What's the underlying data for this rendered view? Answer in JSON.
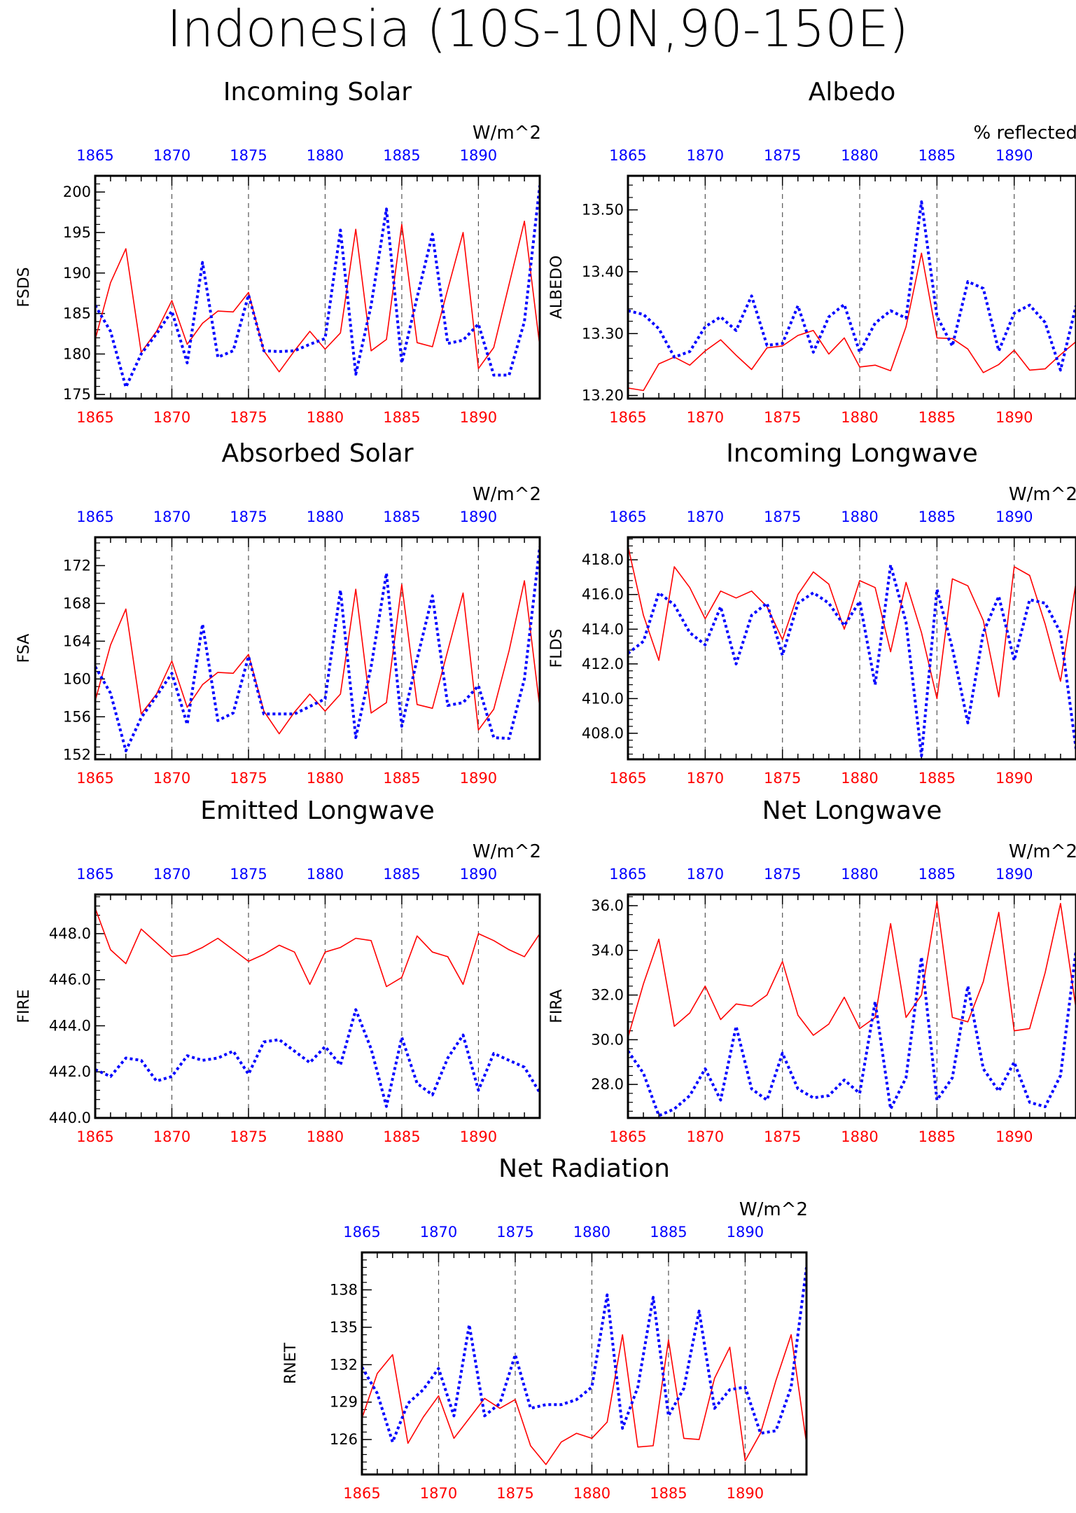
{
  "title": "Indonesia (10S-10N,90-150E)",
  "colors": {
    "series1": "#ff0000",
    "series2": "#0000ff",
    "top_axis": "#0000ff",
    "bottom_axis": "#ff0000"
  },
  "chart_data": [
    {
      "type": "line",
      "title": "Incoming Solar",
      "unit": "W/m^2",
      "ylabel": "FSDS",
      "xlim": [
        1865,
        1894
      ],
      "ylim": [
        174.5,
        202
      ],
      "yticks": [
        175,
        180,
        185,
        190,
        195,
        200
      ],
      "ytick_labels": [
        "175",
        "180",
        "185",
        "190",
        "195",
        "200"
      ],
      "xticks": [
        1865,
        1870,
        1875,
        1880,
        1885,
        1890
      ],
      "xtick_labels": [
        "1865",
        "1870",
        "1875",
        "1880",
        "1885",
        "1890"
      ],
      "x": [
        1865,
        1866,
        1867,
        1868,
        1869,
        1870,
        1871,
        1872,
        1873,
        1874,
        1875,
        1876,
        1877,
        1878,
        1879,
        1880,
        1881,
        1882,
        1883,
        1884,
        1885,
        1886,
        1887,
        1888,
        1889,
        1890,
        1891,
        1892,
        1893,
        1894
      ],
      "series": [
        {
          "values": [
            181.8,
            188.8,
            193.0,
            180.2,
            182.8,
            186.6,
            181.2,
            183.8,
            185.3,
            185.2,
            187.6,
            180.4,
            177.8,
            180.4,
            182.8,
            180.6,
            182.6,
            195.4,
            180.4,
            181.8,
            196.0,
            181.4,
            180.9,
            188.0,
            195.0,
            178.2,
            180.8,
            188.6,
            196.4,
            181.0
          ]
        },
        {
          "values": [
            186.0,
            182.8,
            175.9,
            180.0,
            182.5,
            185.3,
            178.9,
            191.3,
            179.6,
            180.4,
            187.3,
            180.4,
            180.3,
            180.4,
            181.2,
            181.9,
            195.3,
            177.5,
            186.0,
            197.9,
            178.9,
            187.0,
            194.8,
            181.3,
            181.7,
            183.7,
            177.4,
            177.4,
            184.0,
            200.8
          ]
        }
      ]
    },
    {
      "type": "line",
      "title": "Albedo",
      "unit": "% reflected",
      "ylabel": "ALBEDO",
      "xlim": [
        1865,
        1894
      ],
      "ylim": [
        13.195,
        13.555
      ],
      "yticks": [
        13.2,
        13.3,
        13.4,
        13.5
      ],
      "ytick_labels": [
        "13.20",
        "13.30",
        "13.40",
        "13.50"
      ],
      "xticks": [
        1865,
        1870,
        1875,
        1880,
        1885,
        1890
      ],
      "xtick_labels": [
        "1865",
        "1870",
        "1875",
        "1880",
        "1885",
        "1890"
      ],
      "x": [
        1865,
        1866,
        1867,
        1868,
        1869,
        1870,
        1871,
        1872,
        1873,
        1874,
        1875,
        1876,
        1877,
        1878,
        1879,
        1880,
        1881,
        1882,
        1883,
        1884,
        1885,
        1886,
        1887,
        1888,
        1889,
        1890,
        1891,
        1892,
        1893,
        1894
      ],
      "series": [
        {
          "values": [
            13.212,
            13.208,
            13.251,
            13.262,
            13.249,
            13.272,
            13.29,
            13.265,
            13.242,
            13.277,
            13.28,
            13.297,
            13.305,
            13.267,
            13.293,
            13.246,
            13.249,
            13.24,
            13.311,
            13.43,
            13.293,
            13.292,
            13.275,
            13.237,
            13.25,
            13.273,
            13.241,
            13.243,
            13.266,
            13.287
          ]
        },
        {
          "values": [
            13.337,
            13.331,
            13.308,
            13.262,
            13.271,
            13.311,
            13.327,
            13.305,
            13.361,
            13.281,
            13.284,
            13.345,
            13.27,
            13.327,
            13.347,
            13.27,
            13.317,
            13.337,
            13.325,
            13.513,
            13.328,
            13.28,
            13.384,
            13.373,
            13.272,
            13.333,
            13.346,
            13.318,
            13.241,
            13.345
          ]
        }
      ]
    },
    {
      "type": "line",
      "title": "Absorbed Solar",
      "unit": "W/m^2",
      "ylabel": "FSA",
      "xlim": [
        1865,
        1894
      ],
      "ylim": [
        151.5,
        175
      ],
      "yticks": [
        152,
        156,
        160,
        164,
        168,
        172
      ],
      "ytick_labels": [
        "152",
        "156",
        "160",
        "164",
        "168",
        "172"
      ],
      "xticks": [
        1865,
        1870,
        1875,
        1880,
        1885,
        1890
      ],
      "xtick_labels": [
        "1865",
        "1870",
        "1875",
        "1880",
        "1885",
        "1890"
      ],
      "x": [
        1865,
        1866,
        1867,
        1868,
        1869,
        1870,
        1871,
        1872,
        1873,
        1874,
        1875,
        1876,
        1877,
        1878,
        1879,
        1880,
        1881,
        1882,
        1883,
        1884,
        1885,
        1886,
        1887,
        1888,
        1889,
        1890,
        1891,
        1892,
        1893,
        1894
      ],
      "series": [
        {
          "values": [
            157.7,
            163.6,
            167.4,
            156.3,
            158.4,
            161.9,
            157.0,
            159.4,
            160.7,
            160.6,
            162.6,
            156.6,
            154.2,
            156.5,
            158.4,
            156.6,
            158.4,
            169.5,
            156.4,
            157.5,
            170.0,
            157.3,
            156.9,
            163.0,
            169.1,
            154.6,
            156.8,
            163.0,
            170.4,
            157.0
          ]
        },
        {
          "values": [
            161.3,
            158.5,
            152.4,
            155.9,
            158.2,
            160.6,
            155.2,
            165.8,
            155.6,
            156.4,
            162.4,
            156.3,
            156.3,
            156.3,
            157.1,
            157.9,
            169.4,
            153.8,
            161.3,
            171.2,
            155.0,
            162.1,
            168.8,
            157.2,
            157.5,
            159.3,
            153.8,
            153.7,
            160.0,
            174.0
          ]
        }
      ]
    },
    {
      "type": "line",
      "title": "Incoming Longwave",
      "unit": "W/m^2",
      "ylabel": "FLDS",
      "xlim": [
        1865,
        1894
      ],
      "ylim": [
        406.5,
        419.3
      ],
      "yticks": [
        408,
        410,
        412,
        414,
        416,
        418
      ],
      "ytick_labels": [
        "408.0",
        "410.0",
        "412.0",
        "414.0",
        "416.0",
        "418.0"
      ],
      "xticks": [
        1865,
        1870,
        1875,
        1880,
        1885,
        1890
      ],
      "xtick_labels": [
        "1865",
        "1870",
        "1875",
        "1880",
        "1885",
        "1890"
      ],
      "x": [
        1865,
        1866,
        1867,
        1868,
        1869,
        1870,
        1871,
        1872,
        1873,
        1874,
        1875,
        1876,
        1877,
        1878,
        1879,
        1880,
        1881,
        1882,
        1883,
        1884,
        1885,
        1886,
        1887,
        1888,
        1889,
        1890,
        1891,
        1892,
        1893,
        1894
      ],
      "series": [
        {
          "values": [
            418.8,
            414.8,
            412.2,
            417.6,
            416.4,
            414.6,
            416.2,
            415.8,
            416.2,
            415.3,
            413.4,
            416.0,
            417.3,
            416.6,
            414.0,
            416.8,
            416.4,
            412.7,
            416.7,
            413.8,
            410.0,
            416.9,
            416.5,
            414.5,
            410.1,
            417.6,
            417.1,
            414.3,
            411.0,
            416.7
          ]
        },
        {
          "values": [
            412.6,
            413.3,
            416.1,
            415.4,
            413.8,
            413.1,
            415.3,
            412.0,
            414.8,
            415.5,
            412.5,
            415.5,
            416.1,
            415.5,
            414.2,
            415.6,
            410.8,
            417.7,
            414.4,
            406.7,
            416.3,
            412.9,
            408.6,
            413.8,
            415.9,
            412.2,
            415.7,
            415.5,
            413.8,
            407.1
          ]
        }
      ]
    },
    {
      "type": "line",
      "title": "Emitted Longwave",
      "unit": "W/m^2",
      "ylabel": "FIRE",
      "xlim": [
        1865,
        1894
      ],
      "ylim": [
        440,
        449.7
      ],
      "yticks": [
        440,
        442,
        444,
        446,
        448
      ],
      "ytick_labels": [
        "440.0",
        "442.0",
        "444.0",
        "446.0",
        "448.0"
      ],
      "xticks": [
        1865,
        1870,
        1875,
        1880,
        1885,
        1890
      ],
      "xtick_labels": [
        "1865",
        "1870",
        "1875",
        "1880",
        "1885",
        "1890"
      ],
      "x": [
        1865,
        1866,
        1867,
        1868,
        1869,
        1870,
        1871,
        1872,
        1873,
        1874,
        1875,
        1876,
        1877,
        1878,
        1879,
        1880,
        1881,
        1882,
        1883,
        1884,
        1885,
        1886,
        1887,
        1888,
        1889,
        1890,
        1891,
        1892,
        1893,
        1894
      ],
      "series": [
        {
          "values": [
            449.1,
            447.3,
            446.7,
            448.2,
            447.6,
            447.0,
            447.1,
            447.4,
            447.8,
            447.3,
            446.8,
            447.1,
            447.5,
            447.2,
            445.8,
            447.2,
            447.4,
            447.8,
            447.7,
            445.7,
            446.1,
            447.9,
            447.2,
            447.0,
            445.8,
            448.0,
            447.7,
            447.3,
            447.0,
            448.0
          ]
        },
        {
          "values": [
            442.1,
            441.8,
            442.6,
            442.5,
            441.6,
            441.8,
            442.7,
            442.5,
            442.6,
            442.9,
            441.9,
            443.3,
            443.4,
            442.9,
            442.4,
            443.1,
            442.3,
            444.7,
            443.0,
            440.5,
            443.5,
            441.5,
            441.0,
            442.6,
            443.6,
            441.2,
            442.8,
            442.5,
            442.2,
            441.1
          ]
        }
      ]
    },
    {
      "type": "line",
      "title": "Net Longwave",
      "unit": "W/m^2",
      "ylabel": "FIRA",
      "xlim": [
        1865,
        1894
      ],
      "ylim": [
        26.5,
        36.5
      ],
      "yticks": [
        28,
        30,
        32,
        34,
        36
      ],
      "ytick_labels": [
        "28.0",
        "30.0",
        "32.0",
        "34.0",
        "36.0"
      ],
      "xticks": [
        1865,
        1870,
        1875,
        1880,
        1885,
        1890
      ],
      "xtick_labels": [
        "1865",
        "1870",
        "1875",
        "1880",
        "1885",
        "1890"
      ],
      "x": [
        1865,
        1866,
        1867,
        1868,
        1869,
        1870,
        1871,
        1872,
        1873,
        1874,
        1875,
        1876,
        1877,
        1878,
        1879,
        1880,
        1881,
        1882,
        1883,
        1884,
        1885,
        1886,
        1887,
        1888,
        1889,
        1890,
        1891,
        1892,
        1893,
        1894
      ],
      "series": [
        {
          "values": [
            30.1,
            32.5,
            34.5,
            30.6,
            31.2,
            32.4,
            30.9,
            31.6,
            31.5,
            32.0,
            33.5,
            31.1,
            30.2,
            30.7,
            31.9,
            30.5,
            31.0,
            35.2,
            31.0,
            32.0,
            36.2,
            31.0,
            30.8,
            32.6,
            35.7,
            30.4,
            30.5,
            33.0,
            36.1,
            31.4
          ]
        },
        {
          "values": [
            29.5,
            28.5,
            26.6,
            26.9,
            27.5,
            28.7,
            27.3,
            30.6,
            27.8,
            27.3,
            29.4,
            27.8,
            27.4,
            27.5,
            28.2,
            27.6,
            31.7,
            26.9,
            28.3,
            33.7,
            27.3,
            28.3,
            32.4,
            28.7,
            27.7,
            29.0,
            27.2,
            27.0,
            28.4,
            34.0
          ]
        }
      ]
    },
    {
      "type": "line",
      "title": "Net Radiation",
      "unit": "W/m^2",
      "ylabel": "RNET",
      "xlim": [
        1865,
        1894
      ],
      "ylim": [
        123.2,
        141
      ],
      "yticks": [
        126,
        129,
        132,
        135,
        138
      ],
      "ytick_labels": [
        "126",
        "129",
        "132",
        "135",
        "138"
      ],
      "xticks": [
        1865,
        1870,
        1875,
        1880,
        1885,
        1890
      ],
      "xtick_labels": [
        "1865",
        "1870",
        "1875",
        "1880",
        "1885",
        "1890"
      ],
      "x": [
        1865,
        1866,
        1867,
        1868,
        1869,
        1870,
        1871,
        1872,
        1873,
        1874,
        1875,
        1876,
        1877,
        1878,
        1879,
        1880,
        1881,
        1882,
        1883,
        1884,
        1885,
        1886,
        1887,
        1888,
        1889,
        1890,
        1891,
        1892,
        1893,
        1894
      ],
      "series": [
        {
          "values": [
            127.7,
            131.3,
            132.8,
            125.7,
            127.8,
            129.5,
            126.1,
            127.7,
            129.3,
            128.5,
            129.2,
            125.5,
            124.0,
            125.8,
            126.5,
            126.1,
            127.4,
            134.4,
            125.4,
            125.5,
            134.0,
            126.1,
            126.0,
            130.9,
            133.4,
            124.3,
            126.5,
            130.7,
            134.4,
            125.7
          ]
        },
        {
          "values": [
            131.8,
            129.7,
            125.8,
            128.9,
            130.0,
            131.7,
            127.9,
            135.2,
            127.9,
            128.9,
            132.8,
            128.5,
            128.8,
            128.8,
            129.2,
            130.2,
            137.6,
            126.9,
            130.2,
            137.4,
            127.9,
            130.1,
            136.3,
            128.5,
            130.0,
            130.2,
            126.5,
            126.7,
            130.2,
            139.8
          ]
        }
      ]
    }
  ]
}
